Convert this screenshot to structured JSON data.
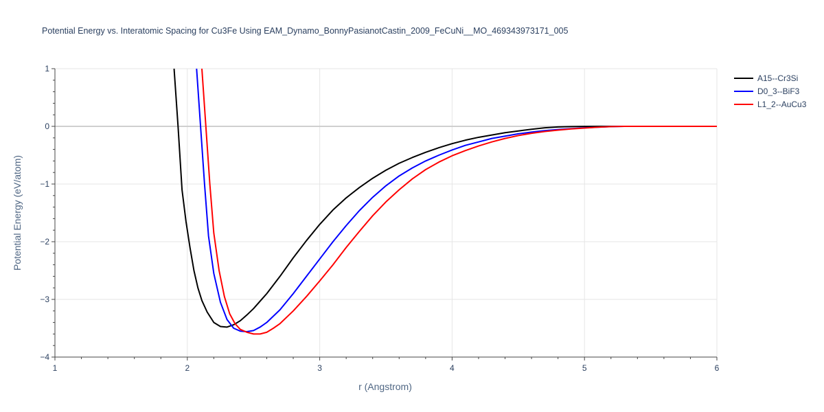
{
  "chart_data": {
    "type": "line",
    "title": "Potential Energy vs. Interatomic Spacing for Cu3Fe Using EAM_Dynamo_BonnyPasianotCastin_2009_FeCuNi__MO_469343973171_005",
    "xlabel": "r (Angstrom)",
    "ylabel": "Potential Energy (eV/atom)",
    "xlim": [
      1,
      6
    ],
    "ylim": [
      -4,
      1
    ],
    "x_ticks": [
      "1",
      "2",
      "3",
      "4",
      "5",
      "6"
    ],
    "y_ticks": [
      "1",
      "0",
      "−1",
      "−2",
      "−3",
      "−4"
    ],
    "grid": true,
    "legend_position": "top-right",
    "series": [
      {
        "name": "A15--Cr3Si",
        "color": "#000000",
        "x": [
          1.9,
          1.93,
          1.96,
          1.99,
          2.02,
          2.05,
          2.08,
          2.11,
          2.15,
          2.2,
          2.25,
          2.3,
          2.35,
          2.4,
          2.45,
          2.5,
          2.6,
          2.7,
          2.8,
          2.9,
          3.0,
          3.1,
          3.2,
          3.3,
          3.4,
          3.5,
          3.6,
          3.7,
          3.8,
          3.9,
          4.0,
          4.1,
          4.2,
          4.3,
          4.4,
          4.5,
          4.6,
          4.7,
          4.8,
          4.9,
          5.0,
          5.1,
          5.2,
          5.3,
          6.0
        ],
        "y": [
          1.0,
          0.0,
          -1.1,
          -1.65,
          -2.1,
          -2.5,
          -2.8,
          -3.02,
          -3.22,
          -3.4,
          -3.47,
          -3.48,
          -3.44,
          -3.37,
          -3.27,
          -3.16,
          -2.9,
          -2.6,
          -2.28,
          -1.98,
          -1.7,
          -1.45,
          -1.24,
          -1.06,
          -0.9,
          -0.76,
          -0.64,
          -0.54,
          -0.45,
          -0.37,
          -0.3,
          -0.24,
          -0.19,
          -0.15,
          -0.11,
          -0.08,
          -0.05,
          -0.025,
          -0.01,
          -0.005,
          -0.002,
          0.0,
          0.0,
          0.0,
          0.0
        ]
      },
      {
        "name": "D0_3--BiF3",
        "color": "#0000ff",
        "x": [
          2.07,
          2.1,
          2.13,
          2.16,
          2.2,
          2.25,
          2.3,
          2.35,
          2.4,
          2.45,
          2.5,
          2.55,
          2.6,
          2.7,
          2.8,
          2.9,
          3.0,
          3.1,
          3.2,
          3.3,
          3.4,
          3.5,
          3.6,
          3.7,
          3.8,
          3.9,
          4.0,
          4.1,
          4.2,
          4.3,
          4.4,
          4.5,
          4.6,
          4.7,
          4.8,
          4.9,
          5.0,
          5.1,
          5.2,
          5.3,
          6.0
        ],
        "y": [
          1.0,
          0.0,
          -1.0,
          -1.9,
          -2.55,
          -3.05,
          -3.35,
          -3.5,
          -3.55,
          -3.56,
          -3.54,
          -3.48,
          -3.4,
          -3.18,
          -2.9,
          -2.6,
          -2.3,
          -2.0,
          -1.72,
          -1.46,
          -1.23,
          -1.03,
          -0.86,
          -0.72,
          -0.6,
          -0.5,
          -0.41,
          -0.33,
          -0.27,
          -0.21,
          -0.17,
          -0.13,
          -0.1,
          -0.075,
          -0.055,
          -0.04,
          -0.025,
          -0.015,
          -0.005,
          0.0,
          0.0
        ]
      },
      {
        "name": "L1_2--AuCu3",
        "color": "#ff0000",
        "x": [
          2.11,
          2.14,
          2.17,
          2.2,
          2.24,
          2.28,
          2.32,
          2.36,
          2.4,
          2.45,
          2.5,
          2.55,
          2.6,
          2.65,
          2.7,
          2.8,
          2.9,
          3.0,
          3.1,
          3.2,
          3.3,
          3.4,
          3.5,
          3.6,
          3.7,
          3.8,
          3.9,
          4.0,
          4.1,
          4.2,
          4.3,
          4.4,
          4.5,
          4.6,
          4.7,
          4.8,
          4.9,
          5.0,
          5.1,
          5.2,
          5.3,
          6.0
        ],
        "y": [
          1.0,
          0.0,
          -1.0,
          -1.85,
          -2.5,
          -2.95,
          -3.25,
          -3.42,
          -3.52,
          -3.57,
          -3.6,
          -3.6,
          -3.57,
          -3.5,
          -3.42,
          -3.2,
          -2.95,
          -2.68,
          -2.4,
          -2.1,
          -1.82,
          -1.55,
          -1.31,
          -1.1,
          -0.91,
          -0.75,
          -0.62,
          -0.51,
          -0.42,
          -0.34,
          -0.27,
          -0.21,
          -0.16,
          -0.12,
          -0.09,
          -0.065,
          -0.045,
          -0.03,
          -0.015,
          -0.005,
          0.0,
          0.0
        ]
      }
    ]
  }
}
